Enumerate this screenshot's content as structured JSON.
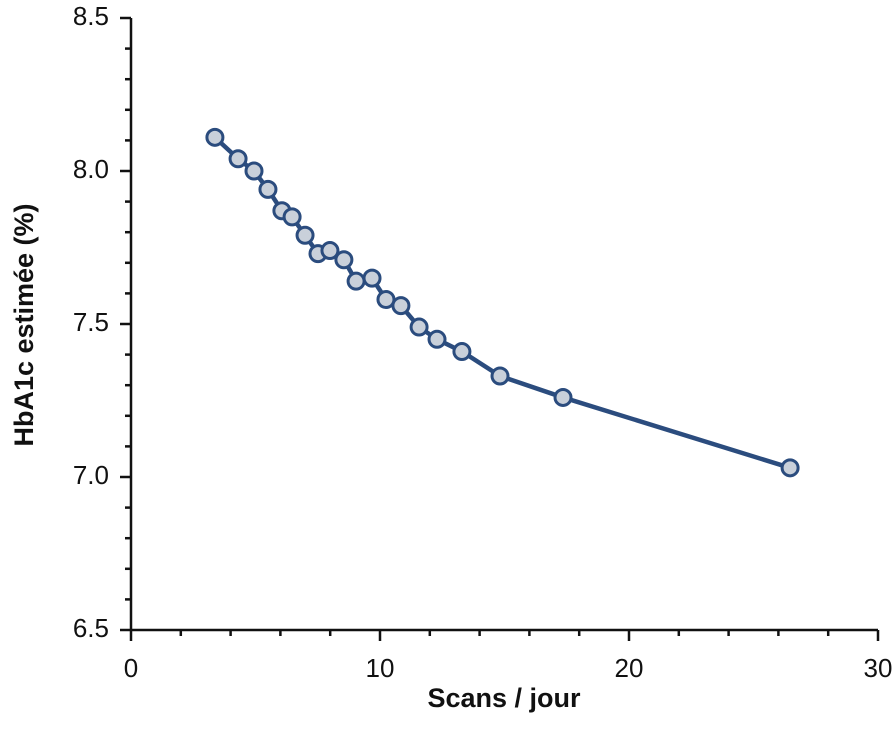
{
  "chart_data": {
    "type": "line",
    "xlabel": "Scans / jour",
    "ylabel": "HbA1c estimée (%)",
    "x": [
      3.37,
      4.3,
      4.94,
      5.5,
      6.06,
      6.47,
      6.99,
      7.51,
      7.99,
      8.55,
      9.04,
      9.68,
      10.24,
      10.84,
      11.57,
      12.29,
      13.29,
      14.82,
      17.35,
      26.47
    ],
    "series": [
      {
        "name": "HbA1c",
        "color": "#2b4c7e",
        "values": [
          8.11,
          8.04,
          8.0,
          7.94,
          7.87,
          7.85,
          7.79,
          7.73,
          7.74,
          7.71,
          7.64,
          7.65,
          7.58,
          7.56,
          7.49,
          7.45,
          7.41,
          7.33,
          7.26,
          7.03
        ]
      }
    ],
    "marker_fill": "#c9d0da",
    "xlim": [
      0,
      30
    ],
    "xticks": [
      0,
      10,
      20,
      30
    ],
    "xminorticks": [
      2,
      4,
      6,
      8,
      12,
      14,
      16,
      18,
      22,
      24,
      26,
      28
    ],
    "ylim": [
      6.5,
      8.5
    ],
    "yticks": [
      6.5,
      {
        "value": 7,
        "label": "7.0"
      },
      7.5,
      {
        "value": 8,
        "label": "8.0"
      },
      8.5
    ],
    "yminorticks": [
      6.6,
      6.7,
      6.8,
      6.9,
      7.1,
      7.2,
      7.3,
      7.4,
      7.6,
      7.7,
      7.8,
      7.9,
      8.1,
      8.2,
      8.3,
      8.4
    ],
    "grid": false
  }
}
